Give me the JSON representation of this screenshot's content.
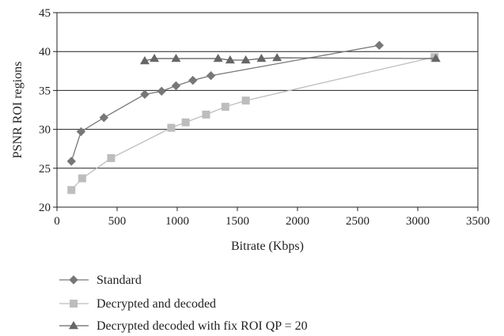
{
  "chart_data": {
    "type": "line",
    "title": "",
    "xlabel": "Bitrate (Kbps)",
    "ylabel": "PSNR ROI regions",
    "xlim": [
      0,
      3500
    ],
    "ylim": [
      20,
      45
    ],
    "xticks": [
      "0",
      "500",
      "1000",
      "1500",
      "2000",
      "2500",
      "3000",
      "3500"
    ],
    "yticks": [
      "20",
      "25",
      "30",
      "35",
      "40",
      "45"
    ],
    "grid": "horizontal",
    "legend_position": "bottom",
    "series": [
      {
        "name": "Standard",
        "color": "#777777",
        "marker": "diamond",
        "x": [
          120,
          200,
          390,
          730,
          870,
          990,
          1130,
          1280,
          2680
        ],
        "y": [
          25.9,
          29.7,
          31.5,
          34.5,
          34.9,
          35.6,
          36.3,
          36.9,
          40.8
        ]
      },
      {
        "name": "Decrypted and decoded",
        "color": "#bdbdbd",
        "marker": "square",
        "x": [
          120,
          210,
          450,
          950,
          1070,
          1240,
          1400,
          1570,
          3140
        ],
        "y": [
          22.2,
          23.7,
          26.3,
          30.2,
          30.9,
          31.9,
          32.9,
          33.7,
          39.3
        ]
      },
      {
        "name": "Decrypted decoded with fix ROI QP = 20",
        "color": "#666666",
        "marker": "triangle",
        "x": [
          730,
          810,
          990,
          1340,
          1440,
          1570,
          1700,
          1830,
          3150
        ],
        "y": [
          38.8,
          39.1,
          39.1,
          39.1,
          38.9,
          38.9,
          39.1,
          39.2,
          39.1
        ]
      }
    ]
  }
}
